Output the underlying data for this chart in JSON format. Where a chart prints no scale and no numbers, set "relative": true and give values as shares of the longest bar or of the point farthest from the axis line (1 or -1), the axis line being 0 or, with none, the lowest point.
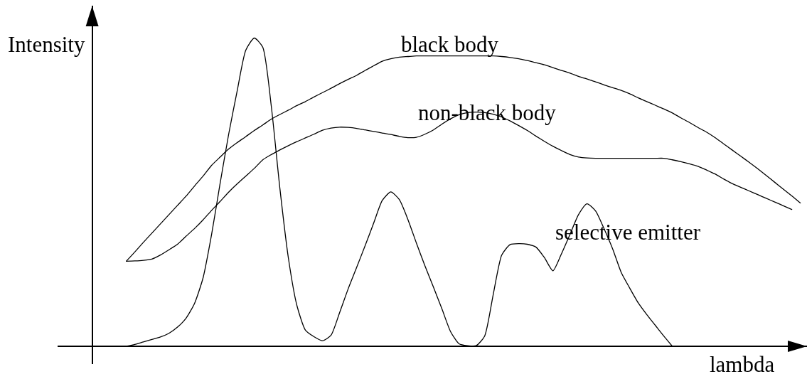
{
  "chart_data": {
    "type": "line",
    "relative": true,
    "xlabel": "lambda",
    "ylabel": "Intensity",
    "legend": false,
    "marker": "none",
    "line_style": "solid",
    "categories": [
      null,
      null,
      null,
      null,
      null,
      null,
      null,
      null,
      null,
      null,
      null,
      null,
      null,
      null,
      null,
      null,
      null,
      null,
      null,
      null,
      null,
      null,
      null,
      null,
      null,
      null,
      null,
      null,
      null,
      null,
      null,
      null,
      null,
      null,
      null,
      null,
      null,
      null,
      null,
      null,
      null,
      null,
      null,
      null,
      null,
      null,
      null,
      null,
      null,
      null,
      null,
      null,
      null,
      null,
      null,
      null,
      null,
      null,
      null,
      null,
      null,
      null,
      null,
      null,
      null,
      null,
      null,
      null,
      null,
      null,
      null,
      null,
      null,
      null,
      null,
      null,
      null,
      null,
      null,
      null
    ],
    "series": [
      {
        "name": "black body",
        "color": "#000000",
        "values": [
          0.276,
          0.306,
          0.337,
          0.367,
          0.397,
          0.427,
          0.457,
          0.487,
          0.52,
          0.552,
          0.587,
          0.614,
          0.64,
          0.661,
          0.68,
          0.7,
          0.718,
          0.737,
          0.752,
          0.766,
          0.781,
          0.794,
          0.809,
          0.823,
          0.837,
          0.852,
          0.866,
          0.879,
          0.895,
          0.91,
          0.925,
          0.933,
          0.938,
          0.94,
          0.942,
          0.942,
          0.942,
          0.942,
          0.942,
          0.942,
          0.942,
          0.942,
          0.942,
          0.942,
          0.94,
          0.937,
          0.933,
          0.927,
          0.92,
          0.913,
          0.904,
          0.895,
          0.886,
          0.876,
          0.867,
          0.858,
          0.848,
          0.839,
          0.83,
          0.819,
          0.806,
          0.794,
          0.782,
          0.77,
          0.757,
          0.741,
          0.726,
          0.71,
          0.695,
          0.677,
          0.657,
          0.637,
          0.617,
          0.597,
          0.576,
          0.554,
          0.532,
          0.51,
          0.488,
          0.465
        ]
      },
      {
        "name": "non-black body",
        "color": "#000000",
        "values": [
          0.276,
          0.277,
          0.279,
          0.283,
          0.296,
          0.313,
          0.331,
          0.357,
          0.382,
          0.41,
          0.441,
          0.47,
          0.5,
          0.527,
          0.552,
          0.577,
          0.605,
          0.622,
          0.637,
          0.651,
          0.664,
          0.676,
          0.688,
          0.701,
          0.708,
          0.711,
          0.71,
          0.707,
          0.702,
          0.697,
          0.692,
          0.687,
          0.681,
          0.677,
          0.678,
          0.688,
          0.702,
          0.721,
          0.738,
          0.751,
          0.758,
          0.76,
          0.758,
          0.753,
          0.744,
          0.731,
          0.716,
          0.7,
          0.682,
          0.665,
          0.649,
          0.635,
          0.622,
          0.614,
          0.611,
          0.61,
          0.61,
          0.61,
          0.61,
          0.61,
          0.61,
          0.61,
          0.61,
          0.61,
          0.605,
          0.599,
          0.592,
          0.584,
          0.572,
          0.559,
          0.543,
          0.528,
          0.516,
          0.504,
          0.492,
          0.48,
          0.468,
          0.456,
          0.444,
          null
        ]
      },
      {
        "name": "selective emitter",
        "color": "#000000",
        "values": [
          0,
          0.006,
          0.014,
          0.022,
          0.03,
          0.042,
          0.062,
          0.091,
          0.139,
          0.222,
          0.363,
          0.529,
          0.688,
          0.829,
          0.96,
          1,
          0.97,
          0.778,
          0.513,
          0.286,
          0.132,
          0.052,
          0.031,
          0.018,
          0.036,
          0.109,
          0.186,
          0.256,
          0.327,
          0.4,
          0.473,
          0.501,
          0.476,
          0.412,
          0.335,
          0.261,
          0.192,
          0.121,
          0.048,
          0.008,
          0.002,
          0.002,
          0.033,
          0.167,
          0.296,
          0.33,
          0.333,
          0.331,
          0.322,
          0.288,
          0.245,
          0.3,
          0.363,
          0.427,
          0.462,
          0.439,
          0.381,
          0.316,
          0.24,
          0.189,
          0.141,
          0.103,
          0.068,
          0.033,
          0,
          null,
          null,
          null,
          null,
          null,
          null,
          null,
          null,
          null,
          null,
          null,
          null,
          null,
          null,
          null
        ]
      }
    ]
  }
}
